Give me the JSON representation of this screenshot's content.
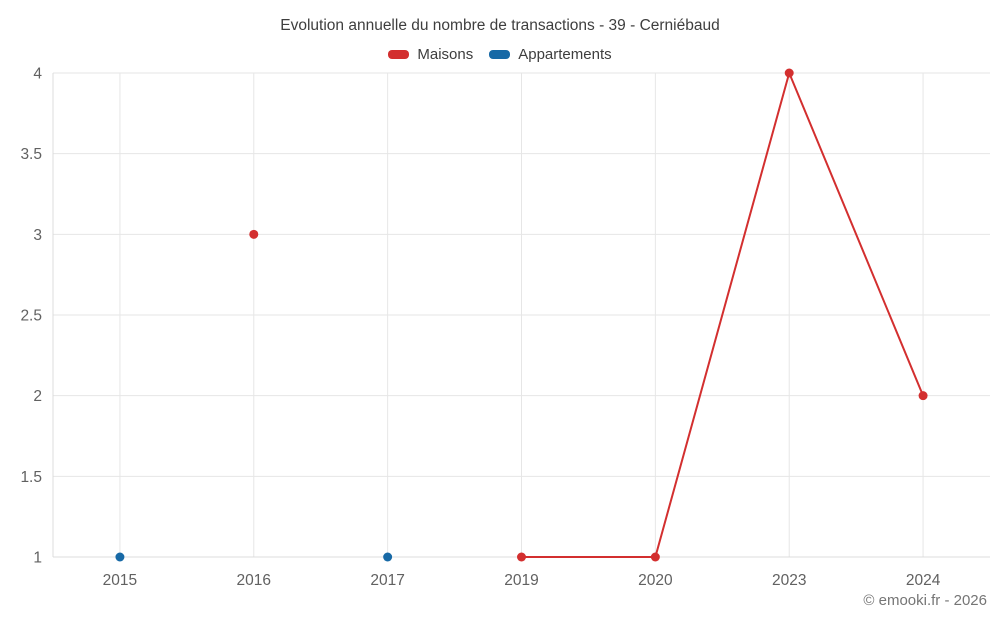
{
  "chart_data": {
    "type": "line",
    "title": "Evolution annuelle du nombre de transactions - 39 - Cerniébaud",
    "categories": [
      "2015",
      "2016",
      "2017",
      "2019",
      "2020",
      "2023",
      "2024"
    ],
    "series": [
      {
        "name": "Maisons",
        "color": "#d32f2f",
        "values": [
          null,
          3,
          null,
          1,
          1,
          4,
          2
        ]
      },
      {
        "name": "Appartements",
        "color": "#1769a6",
        "values": [
          1,
          null,
          1,
          null,
          null,
          null,
          null
        ]
      }
    ],
    "y_ticks": [
      1,
      1.5,
      2,
      2.5,
      3,
      3.5,
      4
    ],
    "ylim": [
      1,
      4
    ],
    "grid": true,
    "grid_color": "#e6e6e6",
    "axis_color": "#dcdcdc",
    "legend_position": "top",
    "xlabel": "",
    "ylabel": ""
  },
  "footer": {
    "text": "© emooki.fr - 2026"
  }
}
